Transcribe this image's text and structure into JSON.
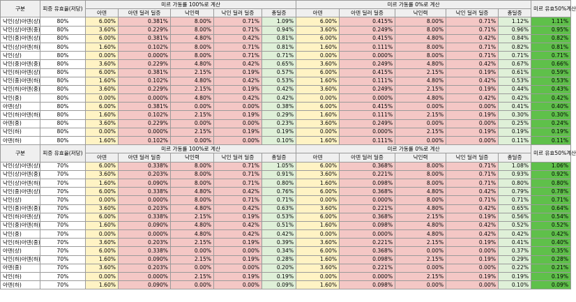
{
  "headers": {
    "group": "구분",
    "ratio": "피증 유효율(저당)",
    "sec100": "미르 가동률 100%로 계산",
    "sec0": "미르 가동률 0%로 계산",
    "sec50": "미르 유효50%계산",
    "cols": [
      "아덴",
      "아덴 딜러 딜증",
      "낙인력",
      "낙인 딜러 딜증",
      "총딜증"
    ]
  },
  "tables": [
    {
      "ratio": "80%",
      "rows": [
        {
          "label": "낙인(상)아덴(상)",
          "a": "6.00%",
          "b": "0.381%",
          "c": "8.00%",
          "d": "0.71%",
          "e": "1.09%",
          "f": "6.00%",
          "g": "0.415%",
          "h": "8.00%",
          "i": "0.71%",
          "j": "1.12%",
          "k": "1.11%"
        },
        {
          "label": "낙인(상)아덴(중)",
          "a": "3.60%",
          "b": "0.229%",
          "c": "8.00%",
          "d": "0.71%",
          "e": "0.94%",
          "f": "3.60%",
          "g": "0.249%",
          "h": "8.00%",
          "i": "0.71%",
          "j": "0.96%",
          "k": "0.95%"
        },
        {
          "label": "낙인(중)아덴(상)",
          "a": "6.00%",
          "b": "0.381%",
          "c": "4.80%",
          "d": "0.42%",
          "e": "0.81%",
          "f": "6.00%",
          "g": "0.415%",
          "h": "4.80%",
          "i": "0.42%",
          "j": "0.84%",
          "k": "0.82%"
        },
        {
          "label": "낙인(상)아덴(하)",
          "a": "1.60%",
          "b": "0.102%",
          "c": "8.00%",
          "d": "0.71%",
          "e": "0.81%",
          "f": "1.60%",
          "g": "0.111%",
          "h": "8.00%",
          "i": "0.71%",
          "j": "0.82%",
          "k": "0.81%"
        },
        {
          "label": "낙인(상)",
          "a": "0.00%",
          "b": "0.000%",
          "c": "8.00%",
          "d": "0.71%",
          "e": "0.71%",
          "f": "0.00%",
          "g": "0.000%",
          "h": "8.00%",
          "i": "0.71%",
          "j": "0.71%",
          "k": "0.71%"
        },
        {
          "label": "낙인(중)아덴(중)",
          "a": "3.60%",
          "b": "0.229%",
          "c": "4.80%",
          "d": "0.42%",
          "e": "0.65%",
          "f": "3.60%",
          "g": "0.249%",
          "h": "4.80%",
          "i": "0.42%",
          "j": "0.67%",
          "k": "0.66%"
        },
        {
          "label": "낙인(하)아덴(상)",
          "a": "6.00%",
          "b": "0.381%",
          "c": "2.15%",
          "d": "0.19%",
          "e": "0.57%",
          "f": "6.00%",
          "g": "0.415%",
          "h": "2.15%",
          "i": "0.19%",
          "j": "0.61%",
          "k": "0.59%"
        },
        {
          "label": "낙인(중)아덴(하)",
          "a": "1.60%",
          "b": "0.102%",
          "c": "4.80%",
          "d": "0.42%",
          "e": "0.53%",
          "f": "1.60%",
          "g": "0.111%",
          "h": "4.80%",
          "i": "0.42%",
          "j": "0.53%",
          "k": "0.53%"
        },
        {
          "label": "낙인(하)아덴(중)",
          "a": "3.60%",
          "b": "0.229%",
          "c": "2.15%",
          "d": "0.19%",
          "e": "0.42%",
          "f": "3.60%",
          "g": "0.249%",
          "h": "2.15%",
          "i": "0.19%",
          "j": "0.44%",
          "k": "0.43%"
        },
        {
          "label": "낙인(중)",
          "a": "0.00%",
          "b": "0.000%",
          "c": "4.80%",
          "d": "0.42%",
          "e": "0.42%",
          "f": "0.00%",
          "g": "0.000%",
          "h": "4.80%",
          "i": "0.42%",
          "j": "0.42%",
          "k": "0.42%"
        },
        {
          "label": "아덴(상)",
          "a": "6.00%",
          "b": "0.381%",
          "c": "0.00%",
          "d": "0.00%",
          "e": "0.38%",
          "f": "6.00%",
          "g": "0.415%",
          "h": "0.00%",
          "i": "0.00%",
          "j": "0.41%",
          "k": "0.40%"
        },
        {
          "label": "낙인(하)아덴(하)",
          "a": "1.60%",
          "b": "0.102%",
          "c": "2.15%",
          "d": "0.19%",
          "e": "0.29%",
          "f": "1.60%",
          "g": "0.111%",
          "h": "2.15%",
          "i": "0.19%",
          "j": "0.30%",
          "k": "0.30%"
        },
        {
          "label": "아덴(중)",
          "a": "3.60%",
          "b": "0.229%",
          "c": "0.00%",
          "d": "0.00%",
          "e": "0.23%",
          "f": "3.60%",
          "g": "0.249%",
          "h": "0.00%",
          "i": "0.00%",
          "j": "0.25%",
          "k": "0.24%"
        },
        {
          "label": "낙인(하)",
          "a": "0.00%",
          "b": "0.000%",
          "c": "2.15%",
          "d": "0.19%",
          "e": "0.19%",
          "f": "0.00%",
          "g": "0.000%",
          "h": "2.15%",
          "i": "0.19%",
          "j": "0.19%",
          "k": "0.19%"
        },
        {
          "label": "아덴(하)",
          "a": "1.60%",
          "b": "0.102%",
          "c": "0.00%",
          "d": "0.00%",
          "e": "0.10%",
          "f": "1.60%",
          "g": "0.111%",
          "h": "0.00%",
          "i": "0.00%",
          "j": "0.11%",
          "k": "0.11%"
        }
      ]
    },
    {
      "ratio": "70%",
      "rows": [
        {
          "label": "낙인(상)아덴(상)",
          "a": "6.00%",
          "b": "0.338%",
          "c": "8.00%",
          "d": "0.71%",
          "e": "1.05%",
          "f": "6.00%",
          "g": "0.368%",
          "h": "8.00%",
          "i": "0.71%",
          "j": "1.08%",
          "k": "1.06%"
        },
        {
          "label": "낙인(상)아덴(중)",
          "a": "3.60%",
          "b": "0.203%",
          "c": "8.00%",
          "d": "0.71%",
          "e": "0.91%",
          "f": "3.60%",
          "g": "0.221%",
          "h": "8.00%",
          "i": "0.71%",
          "j": "0.93%",
          "k": "0.92%"
        },
        {
          "label": "낙인(상)아덴(하)",
          "a": "1.60%",
          "b": "0.090%",
          "c": "8.00%",
          "d": "0.71%",
          "e": "0.80%",
          "f": "1.60%",
          "g": "0.098%",
          "h": "8.00%",
          "i": "0.71%",
          "j": "0.80%",
          "k": "0.80%"
        },
        {
          "label": "낙인(중)아덴(상)",
          "a": "6.00%",
          "b": "0.338%",
          "c": "4.80%",
          "d": "0.42%",
          "e": "0.76%",
          "f": "6.00%",
          "g": "0.368%",
          "h": "4.80%",
          "i": "0.42%",
          "j": "0.79%",
          "k": "0.78%"
        },
        {
          "label": "낙인(상)",
          "a": "0.00%",
          "b": "0.000%",
          "c": "8.00%",
          "d": "0.71%",
          "e": "0.71%",
          "f": "0.00%",
          "g": "0.000%",
          "h": "8.00%",
          "i": "0.71%",
          "j": "0.71%",
          "k": "0.71%"
        },
        {
          "label": "낙인(중)아덴(중)",
          "a": "3.60%",
          "b": "0.203%",
          "c": "4.80%",
          "d": "0.42%",
          "e": "0.63%",
          "f": "3.60%",
          "g": "0.221%",
          "h": "4.80%",
          "i": "0.42%",
          "j": "0.65%",
          "k": "0.64%"
        },
        {
          "label": "낙인(하)아덴(상)",
          "a": "6.00%",
          "b": "0.338%",
          "c": "2.15%",
          "d": "0.19%",
          "e": "0.53%",
          "f": "6.00%",
          "g": "0.368%",
          "h": "2.15%",
          "i": "0.19%",
          "j": "0.56%",
          "k": "0.54%"
        },
        {
          "label": "낙인(중)아덴(하)",
          "a": "1.60%",
          "b": "0.090%",
          "c": "4.80%",
          "d": "0.42%",
          "e": "0.51%",
          "f": "1.60%",
          "g": "0.098%",
          "h": "4.80%",
          "i": "0.42%",
          "j": "0.52%",
          "k": "0.52%"
        },
        {
          "label": "낙인(중)",
          "a": "0.00%",
          "b": "0.000%",
          "c": "4.80%",
          "d": "0.42%",
          "e": "0.42%",
          "f": "0.00%",
          "g": "0.000%",
          "h": "4.80%",
          "i": "0.42%",
          "j": "0.42%",
          "k": "0.42%"
        },
        {
          "label": "낙인(하)아덴(중)",
          "a": "3.60%",
          "b": "0.203%",
          "c": "2.15%",
          "d": "0.19%",
          "e": "0.39%",
          "f": "3.60%",
          "g": "0.221%",
          "h": "2.15%",
          "i": "0.19%",
          "j": "0.41%",
          "k": "0.40%"
        },
        {
          "label": "아덴(상)",
          "a": "6.00%",
          "b": "0.338%",
          "c": "0.00%",
          "d": "0.00%",
          "e": "0.34%",
          "f": "6.00%",
          "g": "0.368%",
          "h": "0.00%",
          "i": "0.00%",
          "j": "0.37%",
          "k": "0.35%"
        },
        {
          "label": "낙인(하)아덴(하)",
          "a": "1.60%",
          "b": "0.090%",
          "c": "2.15%",
          "d": "0.19%",
          "e": "0.28%",
          "f": "1.60%",
          "g": "0.098%",
          "h": "2.15%",
          "i": "0.19%",
          "j": "0.29%",
          "k": "0.28%"
        },
        {
          "label": "아덴(중)",
          "a": "3.60%",
          "b": "0.203%",
          "c": "0.00%",
          "d": "0.00%",
          "e": "0.20%",
          "f": "3.60%",
          "g": "0.221%",
          "h": "0.00%",
          "i": "0.00%",
          "j": "0.22%",
          "k": "0.21%"
        },
        {
          "label": "낙인(하)",
          "a": "0.00%",
          "b": "0.000%",
          "c": "2.15%",
          "d": "0.19%",
          "e": "0.19%",
          "f": "0.00%",
          "g": "0.000%",
          "h": "2.15%",
          "i": "0.19%",
          "j": "0.19%",
          "k": "0.19%"
        },
        {
          "label": "아덴(하)",
          "a": "1.60%",
          "b": "0.090%",
          "c": "0.00%",
          "d": "0.00%",
          "e": "0.09%",
          "f": "1.60%",
          "g": "0.098%",
          "h": "0.00%",
          "i": "0.00%",
          "j": "0.10%",
          "k": "0.09%"
        }
      ]
    }
  ]
}
